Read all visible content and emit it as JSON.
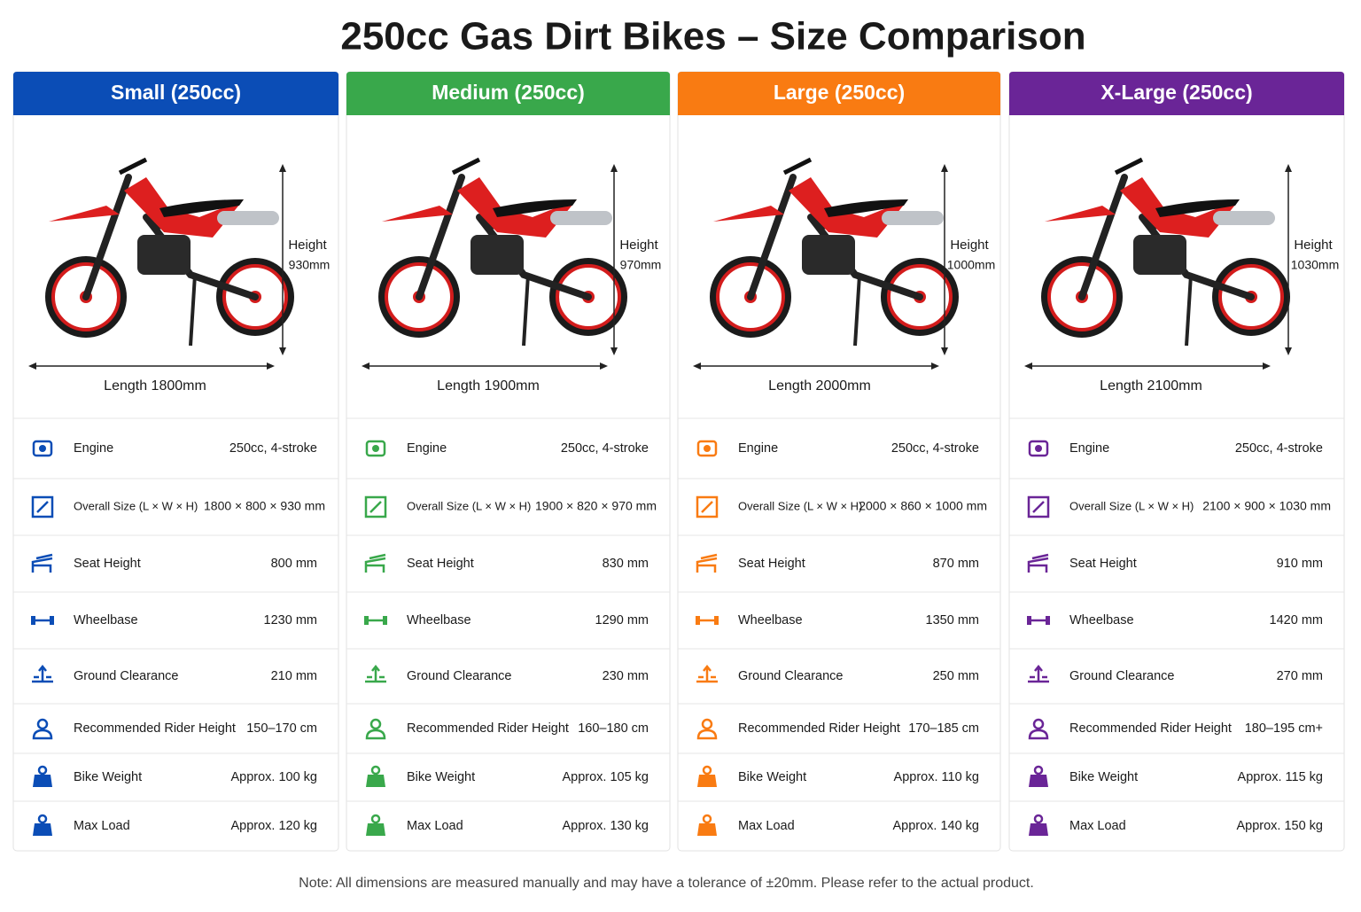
{
  "title": "250cc Gas Dirt Bikes – Size Comparison",
  "cards": [
    {
      "name": "Small (250cc)",
      "color": "#0b4db6",
      "height_label": "Height",
      "height": "930mm",
      "length": "Length 1800mm",
      "specs": [
        {
          "label": "Engine",
          "value": "250cc, 4-stroke"
        },
        {
          "label": "Overall Size (L × W × H)",
          "value": "1800 × 800 × 930 mm"
        },
        {
          "label": "Seat Height",
          "value": "800 mm"
        },
        {
          "label": "Wheelbase",
          "value": "1230 mm"
        },
        {
          "label": "Ground Clearance",
          "value": "210 mm"
        },
        {
          "label": "Recommended Rider Height",
          "value": "150–170 cm"
        },
        {
          "label": "Bike Weight",
          "value": "Approx. 100 kg"
        },
        {
          "label": "Max Load",
          "value": "Approx. 120 kg"
        }
      ]
    },
    {
      "name": "Medium (250cc)",
      "color": "#39a84b",
      "height_label": "Height",
      "height": "970mm",
      "length": "Length 1900mm",
      "specs": [
        {
          "label": "Engine",
          "value": "250cc, 4-stroke"
        },
        {
          "label": "Overall Size (L × W × H)",
          "value": "1900 × 820 × 970 mm"
        },
        {
          "label": "Seat Height",
          "value": "830 mm"
        },
        {
          "label": "Wheelbase",
          "value": "1290 mm"
        },
        {
          "label": "Ground Clearance",
          "value": "230 mm"
        },
        {
          "label": "Recommended Rider Height",
          "value": "160–180 cm"
        },
        {
          "label": "Bike Weight",
          "value": "Approx. 105 kg"
        },
        {
          "label": "Max Load",
          "value": "Approx. 130 kg"
        }
      ]
    },
    {
      "name": "Large (250cc)",
      "color": "#f97b12",
      "height_label": "Height",
      "height": "1000mm",
      "length": "Length 2000mm",
      "specs": [
        {
          "label": "Engine",
          "value": "250cc, 4-stroke"
        },
        {
          "label": "Overall Size (L × W × H)",
          "value": "2000 × 860 × 1000 mm"
        },
        {
          "label": "Seat Height",
          "value": "870 mm"
        },
        {
          "label": "Wheelbase",
          "value": "1350 mm"
        },
        {
          "label": "Ground Clearance",
          "value": "250 mm"
        },
        {
          "label": "Recommended Rider Height",
          "value": "170–185 cm"
        },
        {
          "label": "Bike Weight",
          "value": "Approx. 110 kg"
        },
        {
          "label": "Max Load",
          "value": "Approx. 140 kg"
        }
      ]
    },
    {
      "name": "X-Large (250cc)",
      "color": "#6a2597",
      "height_label": "Height",
      "height": "1030mm",
      "length": "Length 2100mm",
      "specs": [
        {
          "label": "Engine",
          "value": "250cc, 4-stroke"
        },
        {
          "label": "Overall Size (L × W × H)",
          "value": "2100 × 900 × 1030 mm"
        },
        {
          "label": "Seat Height",
          "value": "910 mm"
        },
        {
          "label": "Wheelbase",
          "value": "1420 mm"
        },
        {
          "label": "Ground Clearance",
          "value": "270 mm"
        },
        {
          "label": "Recommended Rider Height",
          "value": "180–195 cm+"
        },
        {
          "label": "Bike Weight",
          "value": "Approx. 115 kg"
        },
        {
          "label": "Max Load",
          "value": "Approx. 150 kg"
        }
      ]
    }
  ],
  "note": "Note: All dimensions are measured manually and may have a tolerance of ±20mm. Please refer to the actual product."
}
